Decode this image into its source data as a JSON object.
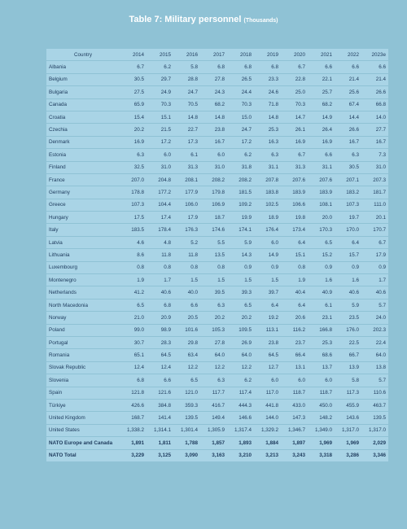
{
  "header": {
    "title": "Table 7: Military personnel",
    "subtitle": "(Thousands)"
  },
  "table": {
    "columns": [
      "Country",
      "2014",
      "2015",
      "2016",
      "2017",
      "2018",
      "2019",
      "2020",
      "2021",
      "2022",
      "2023e"
    ],
    "rows": [
      [
        "Albania",
        "6.7",
        "6.2",
        "5.8",
        "6.8",
        "6.8",
        "6.8",
        "6.7",
        "6.6",
        "6.6",
        "6.6"
      ],
      [
        "Belgium",
        "30.5",
        "29.7",
        "28.8",
        "27.8",
        "26.5",
        "23.3",
        "22.8",
        "22.1",
        "21.4",
        "21.4"
      ],
      [
        "Bulgaria",
        "27.5",
        "24.9",
        "24.7",
        "24.3",
        "24.4",
        "24.6",
        "25.0",
        "25.7",
        "25.6",
        "26.6"
      ],
      [
        "Canada",
        "65.9",
        "70.3",
        "70.5",
        "68.2",
        "70.3",
        "71.8",
        "70.3",
        "68.2",
        "67.4",
        "66.8"
      ],
      [
        "Croatia",
        "15.4",
        "15.1",
        "14.8",
        "14.8",
        "15.0",
        "14.8",
        "14.7",
        "14.9",
        "14.4",
        "14.0"
      ],
      [
        "Czechia",
        "20.2",
        "21.5",
        "22.7",
        "23.8",
        "24.7",
        "25.3",
        "26.1",
        "26.4",
        "26.6",
        "27.7"
      ],
      [
        "Denmark",
        "16.9",
        "17.2",
        "17.3",
        "16.7",
        "17.2",
        "16.3",
        "16.9",
        "16.9",
        "16.7",
        "16.7"
      ],
      [
        "Estonia",
        "6.3",
        "6.0",
        "6.1",
        "6.0",
        "6.2",
        "6.3",
        "6.7",
        "6.6",
        "6.3",
        "7.3"
      ],
      [
        "Finland",
        "32.5",
        "31.0",
        "31.3",
        "31.0",
        "31.8",
        "31.1",
        "31.3",
        "31.1",
        "30.5",
        "31.0"
      ],
      [
        "France",
        "207.0",
        "204.8",
        "208.1",
        "208.2",
        "208.2",
        "207.8",
        "207.6",
        "207.6",
        "207.1",
        "207.3"
      ],
      [
        "Germany",
        "178.8",
        "177.2",
        "177.9",
        "179.8",
        "181.5",
        "183.8",
        "183.9",
        "183.9",
        "183.2",
        "181.7"
      ],
      [
        "Greece",
        "107.3",
        "104.4",
        "106.0",
        "106.9",
        "109.2",
        "102.5",
        "106.6",
        "108.1",
        "107.3",
        "111.0"
      ],
      [
        "Hungary",
        "17.5",
        "17.4",
        "17.9",
        "18.7",
        "19.9",
        "18.9",
        "19.8",
        "20.0",
        "19.7",
        "20.1"
      ],
      [
        "Italy",
        "183.5",
        "178.4",
        "176.3",
        "174.6",
        "174.1",
        "176.4",
        "173.4",
        "170.3",
        "170.0",
        "170.7"
      ],
      [
        "Latvia",
        "4.6",
        "4.8",
        "5.2",
        "5.5",
        "5.9",
        "6.0",
        "6.4",
        "6.5",
        "6.4",
        "6.7"
      ],
      [
        "Lithuania",
        "8.6",
        "11.8",
        "11.8",
        "13.5",
        "14.3",
        "14.9",
        "15.1",
        "15.2",
        "15.7",
        "17.9"
      ],
      [
        "Luxembourg",
        "0.8",
        "0.8",
        "0.8",
        "0.8",
        "0.9",
        "0.9",
        "0.8",
        "0.9",
        "0.9",
        "0.9"
      ],
      [
        "Montenegro",
        "1.9",
        "1.7",
        "1.5",
        "1.5",
        "1.5",
        "1.5",
        "1.9",
        "1.6",
        "1.6",
        "1.7"
      ],
      [
        "Netherlands",
        "41.2",
        "40.6",
        "40.0",
        "39.5",
        "39.3",
        "39.7",
        "40.4",
        "40.9",
        "40.6",
        "40.6"
      ],
      [
        "North Macedonia",
        "6.5",
        "6.8",
        "6.6",
        "6.3",
        "6.5",
        "6.4",
        "6.4",
        "6.1",
        "5.9",
        "5.7"
      ],
      [
        "Norway",
        "21.0",
        "20.9",
        "20.5",
        "20.2",
        "20.2",
        "19.2",
        "20.6",
        "23.1",
        "23.5",
        "24.0"
      ],
      [
        "Poland",
        "99.0",
        "98.9",
        "101.6",
        "105.3",
        "109.5",
        "113.1",
        "116.2",
        "166.8",
        "176.0",
        "202.3"
      ],
      [
        "Portugal",
        "30.7",
        "28.3",
        "29.8",
        "27.8",
        "26.9",
        "23.8",
        "23.7",
        "25.3",
        "22.5",
        "22.4"
      ],
      [
        "Romania",
        "65.1",
        "64.5",
        "63.4",
        "64.0",
        "64.0",
        "64.5",
        "66.4",
        "68.6",
        "66.7",
        "64.0"
      ],
      [
        "Slovak Republic",
        "12.4",
        "12.4",
        "12.2",
        "12.2",
        "12.2",
        "12.7",
        "13.1",
        "13.7",
        "13.9",
        "13.8"
      ],
      [
        "Slovenia",
        "6.8",
        "6.6",
        "6.5",
        "6.3",
        "6.2",
        "6.0",
        "6.0",
        "6.0",
        "5.8",
        "5.7"
      ],
      [
        "Spain",
        "121.8",
        "121.6",
        "121.0",
        "117.7",
        "117.4",
        "117.0",
        "118.7",
        "118.7",
        "117.3",
        "110.6"
      ],
      [
        "Türkiye",
        "426.6",
        "384.8",
        "359.3",
        "416.7",
        "444.3",
        "441.8",
        "433.0",
        "450.0",
        "455.9",
        "463.7"
      ],
      [
        "United Kingdom",
        "168.7",
        "141.4",
        "139.5",
        "149.4",
        "146.6",
        "144.0",
        "147.3",
        "148.2",
        "143.6",
        "139.5"
      ],
      [
        "United States",
        "1,338.2",
        "1,314.1",
        "1,301.4",
        "1,305.9",
        "1,317.4",
        "1,329.2",
        "1,346.7",
        "1,349.0",
        "1,317.0",
        "1,317.0"
      ],
      [
        "NATO Europe and Canada",
        "1,891",
        "1,811",
        "1,788",
        "1,857",
        "1,893",
        "1,884",
        "1,897",
        "1,969",
        "1,969",
        "2,029"
      ],
      [
        "NATO Total",
        "3,229",
        "3,125",
        "3,090",
        "3,163",
        "3,210",
        "3,213",
        "3,243",
        "3,318",
        "3,286",
        "3,346"
      ]
    ],
    "bold_rows": [
      30,
      31
    ]
  }
}
